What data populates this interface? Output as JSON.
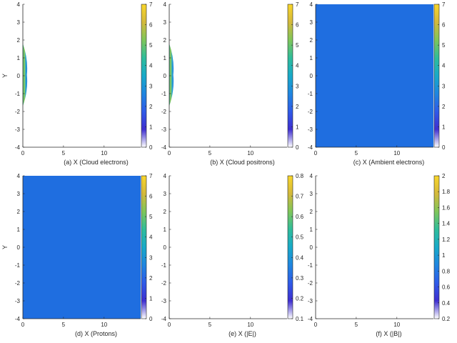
{
  "chart_data": [
    {
      "type": "heatmap",
      "caption": "(a) X (Cloud electrons)",
      "ylabel": "Y",
      "xlim": [
        0,
        14.5
      ],
      "ylim": [
        -4,
        4
      ],
      "xticks": [
        "0",
        "5",
        "10"
      ],
      "yticks": [
        "4",
        "3",
        "2",
        "1",
        "0",
        "-1",
        "-2",
        "-3",
        "-4"
      ],
      "colorbar": {
        "range": [
          0,
          7
        ],
        "ticks": [
          "7",
          "6",
          "5",
          "4",
          "3",
          "2",
          "1",
          "0"
        ]
      },
      "field": {
        "kind": "edge-cloud",
        "y_extent": [
          -1.7,
          1.8
        ],
        "x_max": 0.5
      }
    },
    {
      "type": "heatmap",
      "caption": "(b) X (Cloud positrons)",
      "ylabel": "",
      "xlim": [
        0,
        14.5
      ],
      "ylim": [
        -4,
        4
      ],
      "xticks": [
        "0",
        "5",
        "10"
      ],
      "yticks": [
        "4",
        "3",
        "2",
        "1",
        "0",
        "-1",
        "-2",
        "-3",
        "-4"
      ],
      "colorbar": {
        "range": [
          0,
          7
        ],
        "ticks": [
          "7",
          "6",
          "5",
          "4",
          "3",
          "2",
          "1",
          "0"
        ]
      },
      "field": {
        "kind": "edge-cloud",
        "y_extent": [
          -1.7,
          1.8
        ],
        "x_max": 0.5
      }
    },
    {
      "type": "heatmap",
      "caption": "(c) X (Ambient electrons)",
      "ylabel": "",
      "xlim": [
        0,
        14.5
      ],
      "ylim": [
        -4,
        4
      ],
      "xticks": [
        "0",
        "5",
        "10"
      ],
      "yticks": [
        "4",
        "3",
        "2",
        "1",
        "0",
        "-1",
        "-2",
        "-3",
        "-4"
      ],
      "colorbar": {
        "range": [
          0,
          7
        ],
        "ticks": [
          "7",
          "6",
          "5",
          "4",
          "3",
          "2",
          "1",
          "0"
        ]
      },
      "field": {
        "kind": "uniform",
        "value": 1.3
      }
    },
    {
      "type": "heatmap",
      "caption": "(d) X (Protons)",
      "ylabel": "Y",
      "xlim": [
        0,
        14.5
      ],
      "ylim": [
        -4,
        4
      ],
      "xticks": [
        "0",
        "5",
        "10"
      ],
      "yticks": [
        "4",
        "3",
        "2",
        "1",
        "0",
        "-1",
        "-2",
        "-3",
        "-4"
      ],
      "colorbar": {
        "range": [
          0,
          7
        ],
        "ticks": [
          "7",
          "6",
          "5",
          "4",
          "3",
          "2",
          "1",
          "0"
        ]
      },
      "field": {
        "kind": "uniform",
        "value": 1.3
      }
    },
    {
      "type": "heatmap",
      "caption": "(e) X (|E|)",
      "ylabel": "",
      "xlim": [
        0,
        14.5
      ],
      "ylim": [
        -4,
        4
      ],
      "xticks": [
        "0",
        "5",
        "10"
      ],
      "yticks": [
        "4",
        "3",
        "2",
        "1",
        "0",
        "-1",
        "-2",
        "-3",
        "-4"
      ],
      "colorbar": {
        "range": [
          0.1,
          0.8
        ],
        "ticks": [
          "0.8",
          "0.7",
          "0.6",
          "0.5",
          "0.4",
          "0.3",
          "0.2",
          "0.1"
        ]
      },
      "field": {
        "kind": "empty"
      }
    },
    {
      "type": "heatmap",
      "caption": "(f) X (|B|)",
      "ylabel": "",
      "xlim": [
        0,
        14.5
      ],
      "ylim": [
        -4,
        4
      ],
      "xticks": [
        "0",
        "5",
        "10"
      ],
      "yticks": [
        "4",
        "3",
        "2",
        "1",
        "0",
        "-1",
        "-2",
        "-3",
        "-4"
      ],
      "colorbar": {
        "range": [
          0.2,
          2
        ],
        "ticks": [
          "2",
          "1.8",
          "1.6",
          "1.4",
          "1.2",
          "1",
          "0.8",
          "0.6",
          "0.4",
          "0.2"
        ]
      },
      "field": {
        "kind": "empty"
      }
    }
  ],
  "colors": {
    "field_fill": "#1f6ee0",
    "axis": "#262626",
    "colormap": [
      "#ffffff",
      "#3f2fd0",
      "#2f5be8",
      "#1f86e0",
      "#18aac9",
      "#2fbd9b",
      "#7fc65a",
      "#d4b93b",
      "#f9d62a"
    ]
  }
}
